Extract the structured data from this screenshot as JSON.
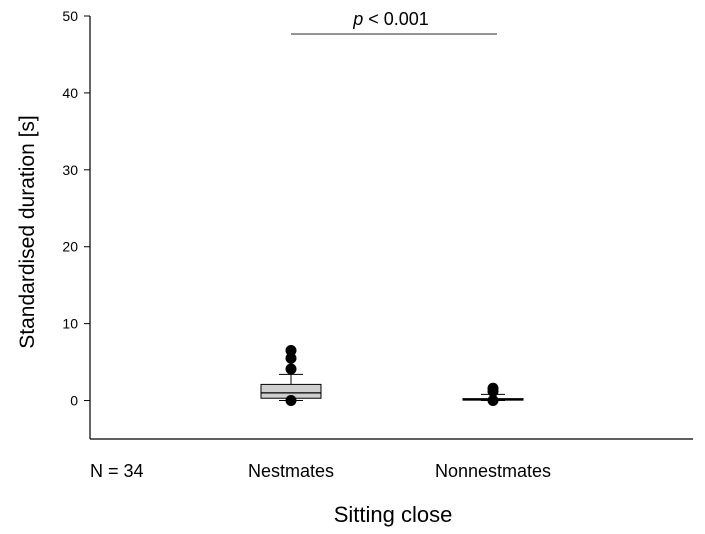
{
  "chart_data": {
    "type": "box",
    "ylabel": "Standardised duration [s]",
    "xlabel": "Sitting close",
    "ylim": [
      -5,
      50
    ],
    "yticks": [
      0,
      10,
      20,
      30,
      40,
      50
    ],
    "n_label": "N = 34",
    "significance": {
      "prefix": "p",
      "text": " < 0.001",
      "from": "Nestmates",
      "to": "Nonnestmates"
    },
    "categories": [
      "Nestmates",
      "Nonnestmates"
    ],
    "boxes": [
      {
        "category": "Nestmates",
        "whisker_low": 0,
        "q1": 0.3,
        "median": 1.0,
        "q3": 2.1,
        "whisker_high": 3.4,
        "outliers": [
          6.5,
          5.5,
          4.1,
          0.0
        ]
      },
      {
        "category": "Nonnestmates",
        "whisker_low": 0,
        "q1": 0.05,
        "median": 0.15,
        "q3": 0.25,
        "whisker_high": 0.8,
        "outliers": [
          1.6,
          1.2,
          0.0
        ]
      }
    ],
    "box_fill": "#cfcfcf",
    "grid": false
  }
}
